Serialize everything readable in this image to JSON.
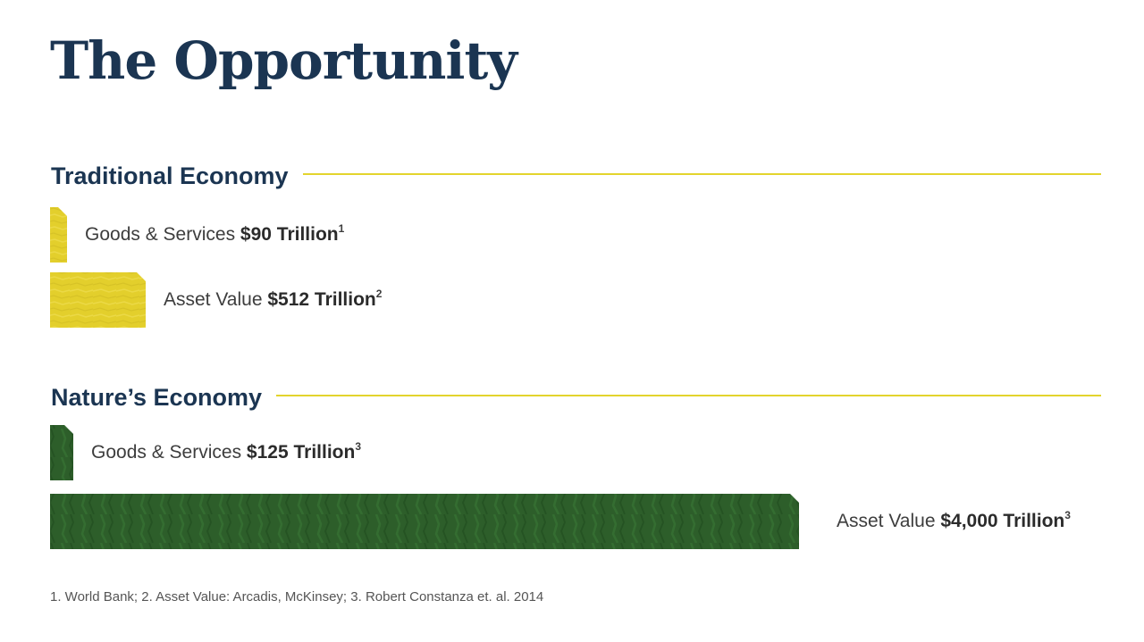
{
  "page": {
    "title": "The Opportunity",
    "footnote": "1. World Bank; 2. Asset Value: Arcadis, McKinsey; 3. Robert Constanza et. al. 2014"
  },
  "colors": {
    "title": "#1b3552",
    "rule": "#e3d42d",
    "traditional_bar": "#e3cf2c",
    "nature_bar": "#2d5e2a"
  },
  "chart_data": {
    "type": "bar",
    "orientation": "horizontal",
    "unit": "Trillion",
    "groups": [
      {
        "name": "Traditional Economy",
        "color": "#e3cf2c",
        "bars": [
          {
            "label": "Goods & Services",
            "value": 90,
            "value_text": "$90 Trillion",
            "footnote": "1"
          },
          {
            "label": "Asset Value",
            "value": 512,
            "value_text": "$512 Trillion",
            "footnote": "2"
          }
        ]
      },
      {
        "name": "Nature’s Economy",
        "color": "#2d5e2a",
        "bars": [
          {
            "label": "Goods & Services",
            "value": 125,
            "value_text": "$125 Trillion",
            "footnote": "3"
          },
          {
            "label": "Asset Value",
            "value": 4000,
            "value_text": "$4,000 Trillion",
            "footnote": "3"
          }
        ]
      }
    ]
  }
}
